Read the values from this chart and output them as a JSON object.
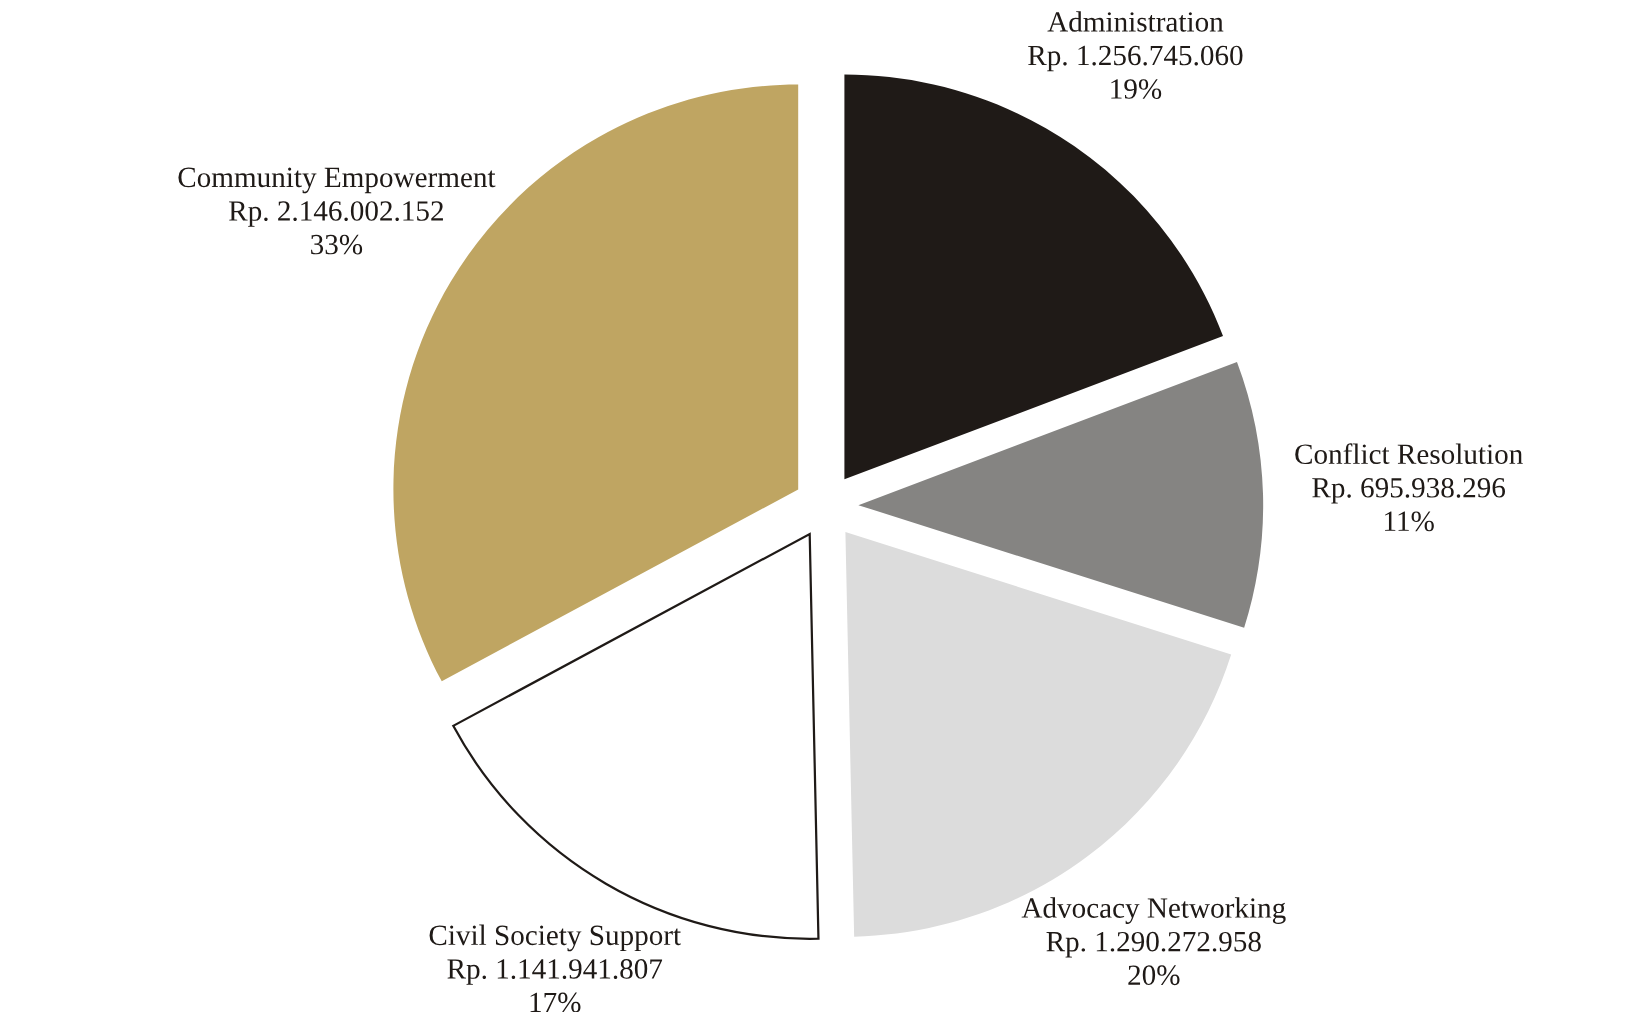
{
  "chart_data": {
    "type": "pie",
    "categories": [
      "Administration",
      "Conflict Resolution",
      "Advocacy Networking",
      "Civil Society Support",
      "Community Empowerment"
    ],
    "values": [
      1256745060,
      695938296,
      1290272958,
      1141941807,
      2146002152
    ],
    "value_labels": [
      "Rp. 1.256.745.060\n19%",
      "Rp. 695.938.296\n11%",
      "Rp. 1.290.272.958\n20%",
      "Rp. 1.141.941.807\n17%",
      "Rp. 2.146.002.152\n33%"
    ],
    "colors": [
      "#1f1a17",
      "#858482",
      "#dcdcdc",
      "#ffffff",
      "#bfa562"
    ],
    "legend": false
  }
}
